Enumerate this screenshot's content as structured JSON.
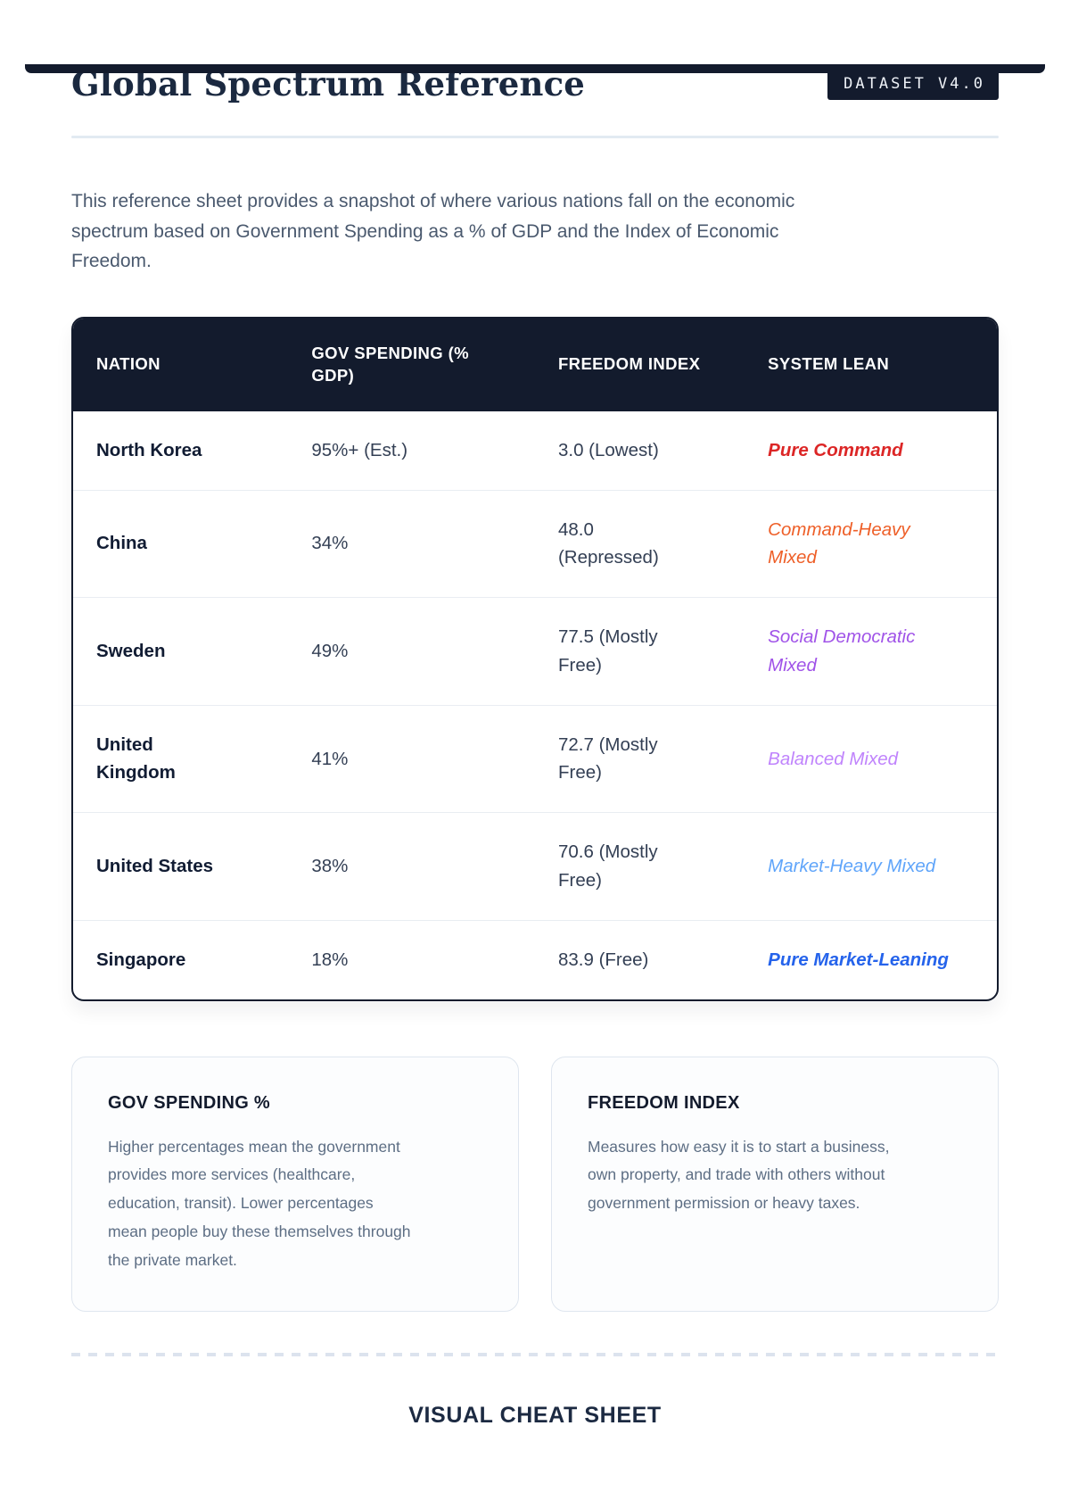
{
  "header": {
    "title": "Global Spectrum Reference",
    "badge": "DATASET V4.0"
  },
  "intro": "This reference sheet provides a snapshot of where various nations fall on the economic\nspectrum based on Government Spending as a % of GDP and the Index of Economic\nFreedom.",
  "table": {
    "columns": [
      "NATION",
      "GOV SPENDING (%\nGDP)",
      "FREEDOM INDEX",
      "SYSTEM LEAN"
    ],
    "header_bg": "#131b2d",
    "rows": [
      {
        "nation": "North Korea",
        "spending": "95%+ (Est.)",
        "freedom": "3.0 (Lowest)",
        "lean": "Pure Command",
        "lean_color": "#dc2626",
        "lean_bold": true
      },
      {
        "nation": "China",
        "spending": "34%",
        "freedom": "48.0\n(Repressed)",
        "lean": "Command-Heavy\nMixed",
        "lean_color": "#ee5f28",
        "lean_bold": false
      },
      {
        "nation": "Sweden",
        "spending": "49%",
        "freedom": "77.5 (Mostly\nFree)",
        "lean": "Social Democratic\nMixed",
        "lean_color": "#a053e8",
        "lean_bold": false
      },
      {
        "nation": "United\nKingdom",
        "spending": "41%",
        "freedom": "72.7 (Mostly\nFree)",
        "lean": "Balanced Mixed",
        "lean_color": "#c084fc",
        "lean_bold": false
      },
      {
        "nation": "United States",
        "spending": "38%",
        "freedom": "70.6 (Mostly\nFree)",
        "lean": "Market-Heavy Mixed",
        "lean_color": "#60a5fa",
        "lean_bold": false
      },
      {
        "nation": "Singapore",
        "spending": "18%",
        "freedom": "83.9 (Free)",
        "lean": "Pure Market-Leaning",
        "lean_color": "#2563eb",
        "lean_bold": true
      }
    ]
  },
  "cards": [
    {
      "heading": "GOV SPENDING %",
      "body": "Higher percentages mean the government\nprovides more services (healthcare,\neducation, transit). Lower percentages\nmean people buy these themselves through\nthe private market."
    },
    {
      "heading": "FREEDOM INDEX",
      "body": "Measures how easy it is to start a business,\nown property, and trade with others without\ngovernment permission or heavy taxes."
    }
  ],
  "footer": {
    "heading": "VISUAL CHEAT SHEET"
  },
  "colors": {
    "accent_dark": "#131b2d",
    "rule_light": "#e2eaf2"
  }
}
